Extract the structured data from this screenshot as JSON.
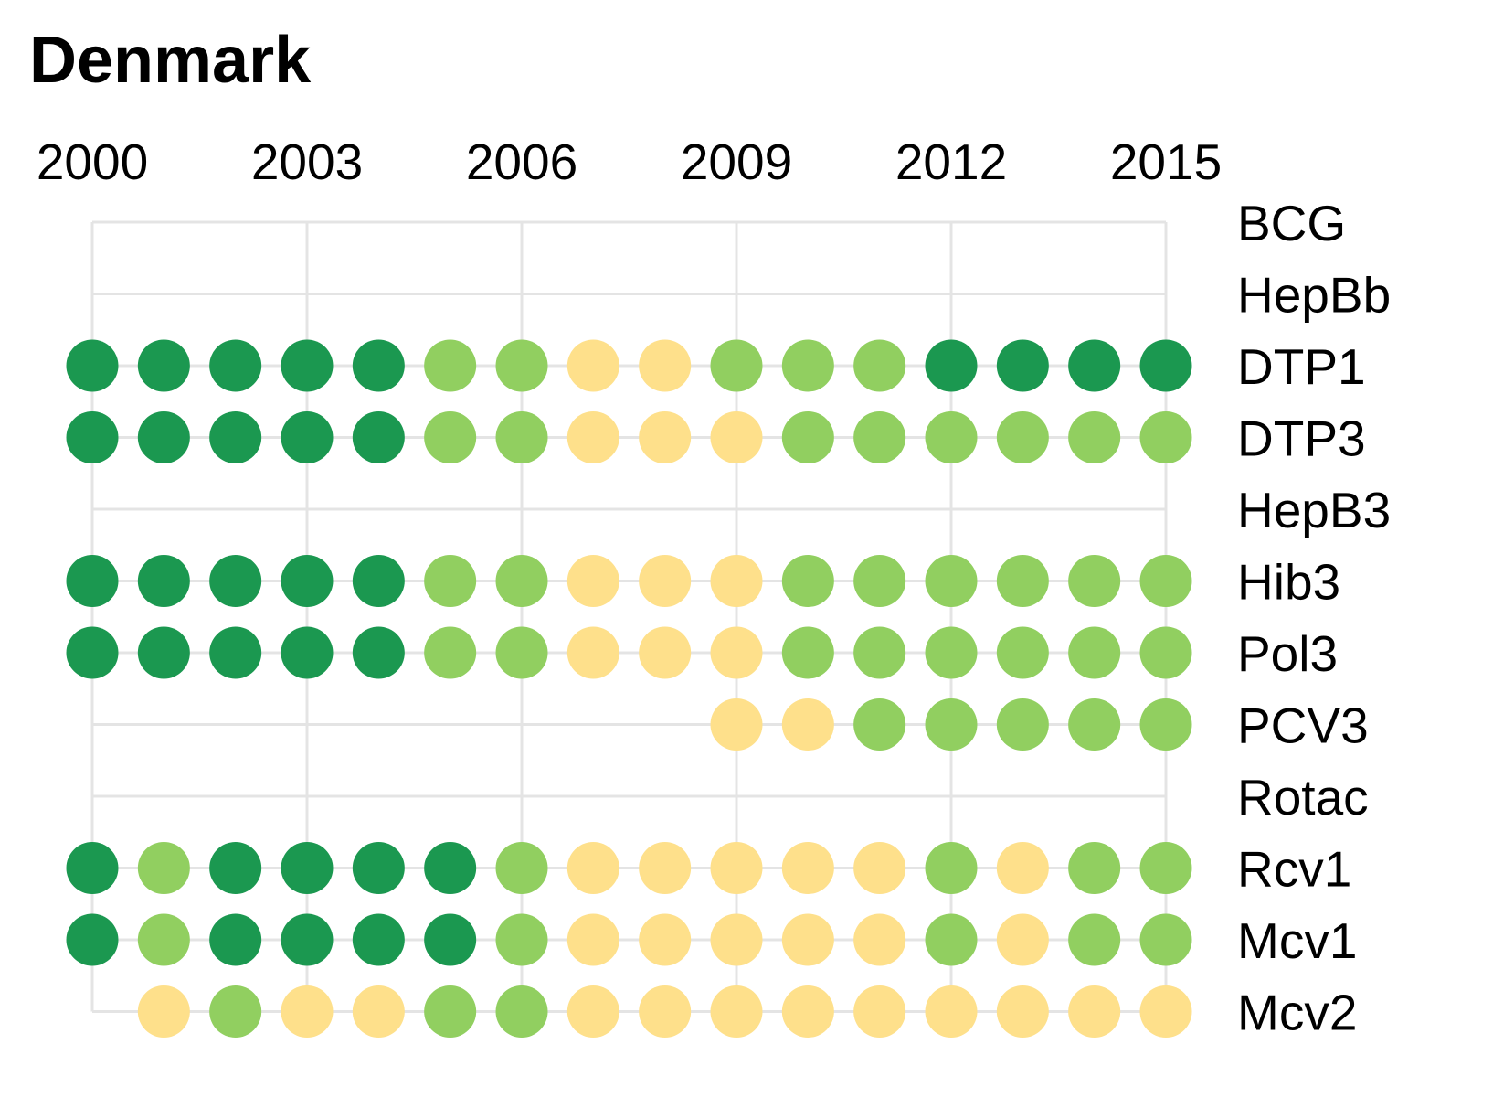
{
  "chart_data": {
    "type": "dot-matrix",
    "title": "Denmark",
    "years": [
      2000,
      2001,
      2002,
      2003,
      2004,
      2005,
      2006,
      2007,
      2008,
      2009,
      2010,
      2011,
      2012,
      2013,
      2014,
      2015
    ],
    "year_ticks": [
      "2000",
      "2003",
      "2006",
      "2009",
      "2012",
      "2015"
    ],
    "colors": {
      "dark_green": "#1b9850",
      "light_green": "#91cf60",
      "yellow": "#fee08b",
      "grid": "#e4e4e4"
    },
    "rows": [
      {
        "label": "BCG",
        "values": [
          null,
          null,
          null,
          null,
          null,
          null,
          null,
          null,
          null,
          null,
          null,
          null,
          null,
          null,
          null,
          null
        ]
      },
      {
        "label": "HepBb",
        "values": [
          null,
          null,
          null,
          null,
          null,
          null,
          null,
          null,
          null,
          null,
          null,
          null,
          null,
          null,
          null,
          null
        ]
      },
      {
        "label": "DTP1",
        "values": [
          "dark_green",
          "dark_green",
          "dark_green",
          "dark_green",
          "dark_green",
          "light_green",
          "light_green",
          "yellow",
          "yellow",
          "light_green",
          "light_green",
          "light_green",
          "dark_green",
          "dark_green",
          "dark_green",
          "dark_green"
        ]
      },
      {
        "label": "DTP3",
        "values": [
          "dark_green",
          "dark_green",
          "dark_green",
          "dark_green",
          "dark_green",
          "light_green",
          "light_green",
          "yellow",
          "yellow",
          "yellow",
          "light_green",
          "light_green",
          "light_green",
          "light_green",
          "light_green",
          "light_green"
        ]
      },
      {
        "label": "HepB3",
        "values": [
          null,
          null,
          null,
          null,
          null,
          null,
          null,
          null,
          null,
          null,
          null,
          null,
          null,
          null,
          null,
          null
        ]
      },
      {
        "label": "Hib3",
        "values": [
          "dark_green",
          "dark_green",
          "dark_green",
          "dark_green",
          "dark_green",
          "light_green",
          "light_green",
          "yellow",
          "yellow",
          "yellow",
          "light_green",
          "light_green",
          "light_green",
          "light_green",
          "light_green",
          "light_green"
        ]
      },
      {
        "label": "Pol3",
        "values": [
          "dark_green",
          "dark_green",
          "dark_green",
          "dark_green",
          "dark_green",
          "light_green",
          "light_green",
          "yellow",
          "yellow",
          "yellow",
          "light_green",
          "light_green",
          "light_green",
          "light_green",
          "light_green",
          "light_green"
        ]
      },
      {
        "label": "PCV3",
        "values": [
          null,
          null,
          null,
          null,
          null,
          null,
          null,
          null,
          null,
          "yellow",
          "yellow",
          "light_green",
          "light_green",
          "light_green",
          "light_green",
          "light_green"
        ]
      },
      {
        "label": "Rotac",
        "values": [
          null,
          null,
          null,
          null,
          null,
          null,
          null,
          null,
          null,
          null,
          null,
          null,
          null,
          null,
          null,
          null
        ]
      },
      {
        "label": "Rcv1",
        "values": [
          "dark_green",
          "light_green",
          "dark_green",
          "dark_green",
          "dark_green",
          "dark_green",
          "light_green",
          "yellow",
          "yellow",
          "yellow",
          "yellow",
          "yellow",
          "light_green",
          "yellow",
          "light_green",
          "light_green"
        ]
      },
      {
        "label": "Mcv1",
        "values": [
          "dark_green",
          "light_green",
          "dark_green",
          "dark_green",
          "dark_green",
          "dark_green",
          "light_green",
          "yellow",
          "yellow",
          "yellow",
          "yellow",
          "yellow",
          "light_green",
          "yellow",
          "light_green",
          "light_green"
        ]
      },
      {
        "label": "Mcv2",
        "values": [
          null,
          "yellow",
          "light_green",
          "yellow",
          "yellow",
          "light_green",
          "light_green",
          "yellow",
          "yellow",
          "yellow",
          "yellow",
          "yellow",
          "yellow",
          "yellow",
          "yellow",
          "yellow"
        ]
      }
    ]
  }
}
